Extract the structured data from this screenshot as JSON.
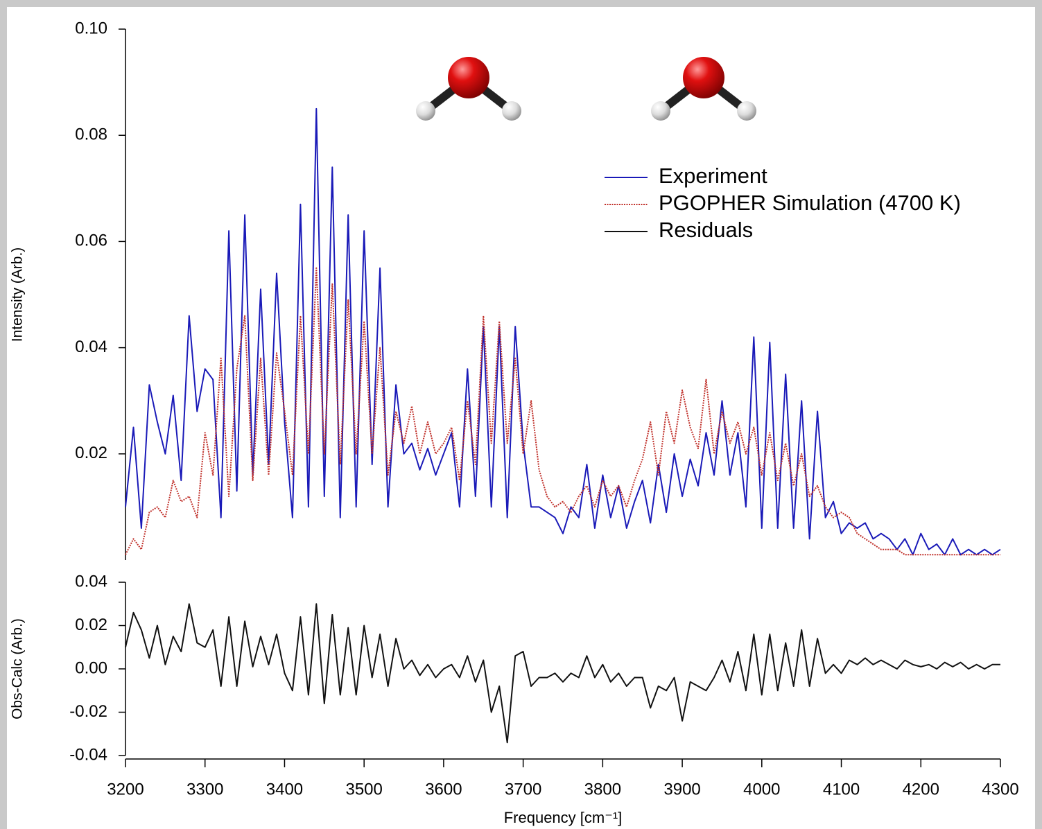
{
  "chart_data": [
    {
      "type": "line",
      "ylabel": "Intensity (Arb.)",
      "xlim": [
        3200,
        4300
      ],
      "ylim": [
        0,
        0.1
      ],
      "yticks": [
        0.02,
        0.04,
        0.06,
        0.08,
        {
          "value": 0.1,
          "label": "0.10"
        }
      ],
      "legend": "upper right",
      "x": [
        3200,
        3210,
        3220,
        3230,
        3240,
        3250,
        3260,
        3270,
        3280,
        3290,
        3300,
        3310,
        3320,
        3330,
        3340,
        3350,
        3360,
        3370,
        3380,
        3390,
        3400,
        3410,
        3420,
        3430,
        3440,
        3450,
        3460,
        3470,
        3480,
        3490,
        3500,
        3510,
        3520,
        3530,
        3540,
        3550,
        3560,
        3570,
        3580,
        3590,
        3600,
        3610,
        3620,
        3630,
        3640,
        3650,
        3660,
        3670,
        3680,
        3690,
        3700,
        3710,
        3720,
        3730,
        3740,
        3750,
        3760,
        3770,
        3780,
        3790,
        3800,
        3810,
        3820,
        3830,
        3840,
        3850,
        3860,
        3870,
        3880,
        3890,
        3900,
        3910,
        3920,
        3930,
        3940,
        3950,
        3960,
        3970,
        3980,
        3990,
        4000,
        4010,
        4020,
        4030,
        4040,
        4050,
        4060,
        4070,
        4080,
        4090,
        4100,
        4110,
        4120,
        4130,
        4140,
        4150,
        4160,
        4170,
        4180,
        4190,
        4200,
        4210,
        4220,
        4230,
        4240,
        4250,
        4260,
        4270,
        4280,
        4290,
        4300
      ],
      "series": [
        {
          "name": "Experiment",
          "color": "#1a1ab8",
          "style": "solid",
          "values": [
            0.01,
            0.025,
            0.006,
            0.033,
            0.026,
            0.02,
            0.031,
            0.015,
            0.046,
            0.028,
            0.036,
            0.034,
            0.008,
            0.062,
            0.013,
            0.065,
            0.016,
            0.051,
            0.018,
            0.054,
            0.026,
            0.008,
            0.067,
            0.01,
            0.085,
            0.012,
            0.074,
            0.008,
            0.065,
            0.01,
            0.062,
            0.018,
            0.055,
            0.01,
            0.033,
            0.02,
            0.022,
            0.017,
            0.021,
            0.016,
            0.02,
            0.024,
            0.01,
            0.036,
            0.012,
            0.044,
            0.01,
            0.044,
            0.008,
            0.044,
            0.022,
            0.01,
            0.01,
            0.009,
            0.008,
            0.005,
            0.01,
            0.008,
            0.018,
            0.006,
            0.016,
            0.008,
            0.014,
            0.006,
            0.011,
            0.015,
            0.007,
            0.018,
            0.009,
            0.02,
            0.012,
            0.019,
            0.014,
            0.024,
            0.016,
            0.03,
            0.016,
            0.024,
            0.01,
            0.042,
            0.006,
            0.041,
            0.006,
            0.035,
            0.006,
            0.03,
            0.004,
            0.028,
            0.008,
            0.011,
            0.005,
            0.007,
            0.006,
            0.007,
            0.004,
            0.005,
            0.004,
            0.002,
            0.004,
            0.001,
            0.005,
            0.002,
            0.003,
            0.001,
            0.004,
            0.001,
            0.002,
            0.001,
            0.002,
            0.001,
            0.002
          ]
        },
        {
          "name": "PGOPHER Simulation (4700 K)",
          "color": "#c0302a",
          "style": "dotted",
          "values": [
            0.001,
            0.004,
            0.002,
            0.009,
            0.01,
            0.008,
            0.015,
            0.011,
            0.012,
            0.008,
            0.024,
            0.016,
            0.038,
            0.012,
            0.036,
            0.046,
            0.015,
            0.038,
            0.016,
            0.039,
            0.028,
            0.016,
            0.046,
            0.02,
            0.055,
            0.02,
            0.052,
            0.018,
            0.049,
            0.02,
            0.045,
            0.02,
            0.04,
            0.016,
            0.028,
            0.022,
            0.029,
            0.02,
            0.026,
            0.02,
            0.022,
            0.025,
            0.015,
            0.03,
            0.018,
            0.046,
            0.022,
            0.045,
            0.022,
            0.038,
            0.02,
            0.03,
            0.017,
            0.012,
            0.01,
            0.011,
            0.009,
            0.012,
            0.014,
            0.01,
            0.015,
            0.012,
            0.014,
            0.01,
            0.015,
            0.019,
            0.026,
            0.016,
            0.028,
            0.022,
            0.032,
            0.025,
            0.021,
            0.034,
            0.02,
            0.028,
            0.022,
            0.026,
            0.02,
            0.025,
            0.016,
            0.024,
            0.015,
            0.022,
            0.014,
            0.02,
            0.012,
            0.014,
            0.01,
            0.008,
            0.009,
            0.008,
            0.005,
            0.004,
            0.003,
            0.002,
            0.002,
            0.002,
            0.001,
            0.001,
            0.001,
            0.001,
            0.001,
            0.001,
            0.001,
            0.001,
            0.001,
            0.001,
            0.001,
            0.001,
            0.001
          ]
        }
      ]
    },
    {
      "type": "line",
      "ylabel": "Obs-Calc (Arb.)",
      "xlabel": "Frequency [cm⁻¹]",
      "xlim": [
        3200,
        4300
      ],
      "xticks": [
        3200,
        3300,
        3400,
        3500,
        3600,
        3700,
        3800,
        3900,
        4000,
        4100,
        4200,
        4300
      ],
      "ylim": [
        -0.04,
        0.04
      ],
      "yticks": [
        -0.04,
        -0.02,
        {
          "value": 0,
          "label": "0.00"
        },
        0.02,
        0.04
      ],
      "x": [
        3200,
        3210,
        3220,
        3230,
        3240,
        3250,
        3260,
        3270,
        3280,
        3290,
        3300,
        3310,
        3320,
        3330,
        3340,
        3350,
        3360,
        3370,
        3380,
        3390,
        3400,
        3410,
        3420,
        3430,
        3440,
        3450,
        3460,
        3470,
        3480,
        3490,
        3500,
        3510,
        3520,
        3530,
        3540,
        3550,
        3560,
        3570,
        3580,
        3590,
        3600,
        3610,
        3620,
        3630,
        3640,
        3650,
        3660,
        3670,
        3680,
        3690,
        3700,
        3710,
        3720,
        3730,
        3740,
        3750,
        3760,
        3770,
        3780,
        3790,
        3800,
        3810,
        3820,
        3830,
        3840,
        3850,
        3860,
        3870,
        3880,
        3890,
        3900,
        3910,
        3920,
        3930,
        3940,
        3950,
        3960,
        3970,
        3980,
        3990,
        4000,
        4010,
        4020,
        4030,
        4040,
        4050,
        4060,
        4070,
        4080,
        4090,
        4100,
        4110,
        4120,
        4130,
        4140,
        4150,
        4160,
        4170,
        4180,
        4190,
        4200,
        4210,
        4220,
        4230,
        4240,
        4250,
        4260,
        4270,
        4280,
        4290,
        4300
      ],
      "series": [
        {
          "name": "Residuals",
          "color": "#111111",
          "style": "solid",
          "values": [
            0.01,
            0.026,
            0.018,
            0.005,
            0.02,
            0.002,
            0.015,
            0.008,
            0.03,
            0.012,
            0.01,
            0.018,
            -0.008,
            0.024,
            -0.008,
            0.022,
            0.001,
            0.015,
            0.002,
            0.016,
            -0.002,
            -0.01,
            0.024,
            -0.012,
            0.03,
            -0.016,
            0.025,
            -0.012,
            0.019,
            -0.012,
            0.02,
            -0.004,
            0.016,
            -0.008,
            0.014,
            0.0,
            0.004,
            -0.003,
            0.002,
            -0.004,
            0.0,
            0.002,
            -0.004,
            0.006,
            -0.006,
            0.004,
            -0.02,
            -0.008,
            -0.034,
            0.006,
            0.008,
            -0.008,
            -0.004,
            -0.004,
            -0.002,
            -0.006,
            -0.002,
            -0.004,
            0.006,
            -0.004,
            0.002,
            -0.006,
            -0.002,
            -0.008,
            -0.004,
            -0.004,
            -0.018,
            -0.008,
            -0.01,
            -0.004,
            -0.024,
            -0.006,
            -0.008,
            -0.01,
            -0.004,
            0.004,
            -0.006,
            0.008,
            -0.01,
            0.016,
            -0.012,
            0.016,
            -0.01,
            0.012,
            -0.008,
            0.018,
            -0.008,
            0.014,
            -0.002,
            0.002,
            -0.002,
            0.004,
            0.002,
            0.005,
            0.002,
            0.004,
            0.002,
            0.0,
            0.004,
            0.002,
            0.001,
            0.002,
            0.0,
            0.003,
            0.001,
            0.003,
            0.0,
            0.002,
            0.0,
            0.002,
            0.002
          ]
        }
      ]
    }
  ]
}
